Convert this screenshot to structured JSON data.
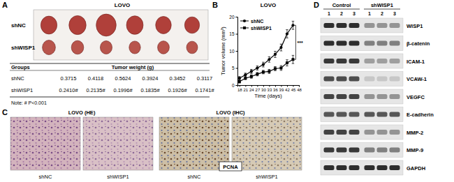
{
  "panel_labels": [
    "A",
    "B",
    "C",
    "D"
  ],
  "panel_a": {
    "title": "LOVO",
    "groups": [
      "shNC",
      "shWISP1"
    ],
    "table": {
      "header": [
        "Groups",
        "Tumor weight (g)"
      ],
      "rows": [
        [
          "shNC",
          "0.3715",
          "0.4118",
          "0.5624",
          "0.3924",
          "0.3452",
          "0.3117"
        ],
        [
          "shWISP1",
          "0.2410#",
          "0.2135#",
          "0.1996#",
          "0.1835#",
          "0.1926#",
          "0.1741#"
        ]
      ]
    },
    "note": "Note: # P<0.001"
  },
  "chart_data": {
    "type": "line",
    "title": "LOVO",
    "xlabel": "Time (days)",
    "ylabel": "Tumor volume (mm³)",
    "x": [
      18,
      21,
      24,
      27,
      30,
      33,
      36,
      39,
      42,
      45
    ],
    "series": [
      {
        "name": "shNC",
        "color": "#000000",
        "marker": "circle",
        "values": [
          2,
          3,
          4,
          5,
          6,
          7.5,
          9,
          11,
          15,
          17.5
        ],
        "errors": [
          0.5,
          0.5,
          0.6,
          0.6,
          0.7,
          0.8,
          0.9,
          1,
          1.2,
          1.2
        ]
      },
      {
        "name": "shWISP1",
        "color": "#000000",
        "marker": "square",
        "values": [
          1,
          2,
          2.5,
          3.2,
          3.8,
          4,
          4.8,
          5,
          6.5,
          7.5
        ],
        "errors": [
          0.4,
          0.4,
          0.5,
          0.5,
          0.5,
          0.6,
          0.6,
          0.7,
          0.9,
          1.2
        ]
      }
    ],
    "xlim": [
      17,
      48
    ],
    "xticks": [
      18,
      21,
      24,
      27,
      30,
      33,
      36,
      39,
      42,
      45,
      48
    ],
    "ylim": [
      0,
      20
    ],
    "yticks": [
      0,
      5,
      10,
      15,
      20
    ],
    "legend": "upper left",
    "annotations": [
      "***"
    ]
  },
  "panel_c": {
    "titles": [
      "LOVO (HE)",
      "LOVO (IHC)"
    ],
    "groups": [
      "shNC",
      "shWISP1"
    ],
    "stain": "PCNA"
  },
  "panel_d": {
    "groups": [
      "Control",
      "shWISP1"
    ],
    "lanes": [
      "1",
      "2",
      "3",
      "1",
      "2",
      "3"
    ],
    "proteins": [
      {
        "name": "WISP1",
        "intensity": [
          0.9,
          0.9,
          0.9,
          0.4,
          0.4,
          0.4
        ]
      },
      {
        "name": "β-catenin",
        "intensity": [
          0.9,
          0.9,
          0.9,
          0.5,
          0.5,
          0.5
        ]
      },
      {
        "name": "ICAM-1",
        "intensity": [
          0.85,
          0.85,
          0.85,
          0.35,
          0.35,
          0.35
        ]
      },
      {
        "name": "VCAW-1",
        "intensity": [
          0.75,
          0.75,
          0.75,
          0.15,
          0.15,
          0.15
        ]
      },
      {
        "name": "VEGFC",
        "intensity": [
          0.8,
          0.8,
          0.8,
          0.4,
          0.4,
          0.4
        ]
      },
      {
        "name": "E-cadherin",
        "intensity": [
          0.7,
          0.7,
          0.7,
          0.7,
          0.7,
          0.7
        ]
      },
      {
        "name": "MMP-2",
        "intensity": [
          0.8,
          0.8,
          0.8,
          0.4,
          0.4,
          0.4
        ]
      },
      {
        "name": "MMP-9",
        "intensity": [
          0.85,
          0.85,
          0.85,
          0.5,
          0.5,
          0.5
        ]
      },
      {
        "name": "GAPDH",
        "intensity": [
          0.9,
          0.9,
          0.9,
          0.9,
          0.9,
          0.9
        ]
      }
    ]
  }
}
